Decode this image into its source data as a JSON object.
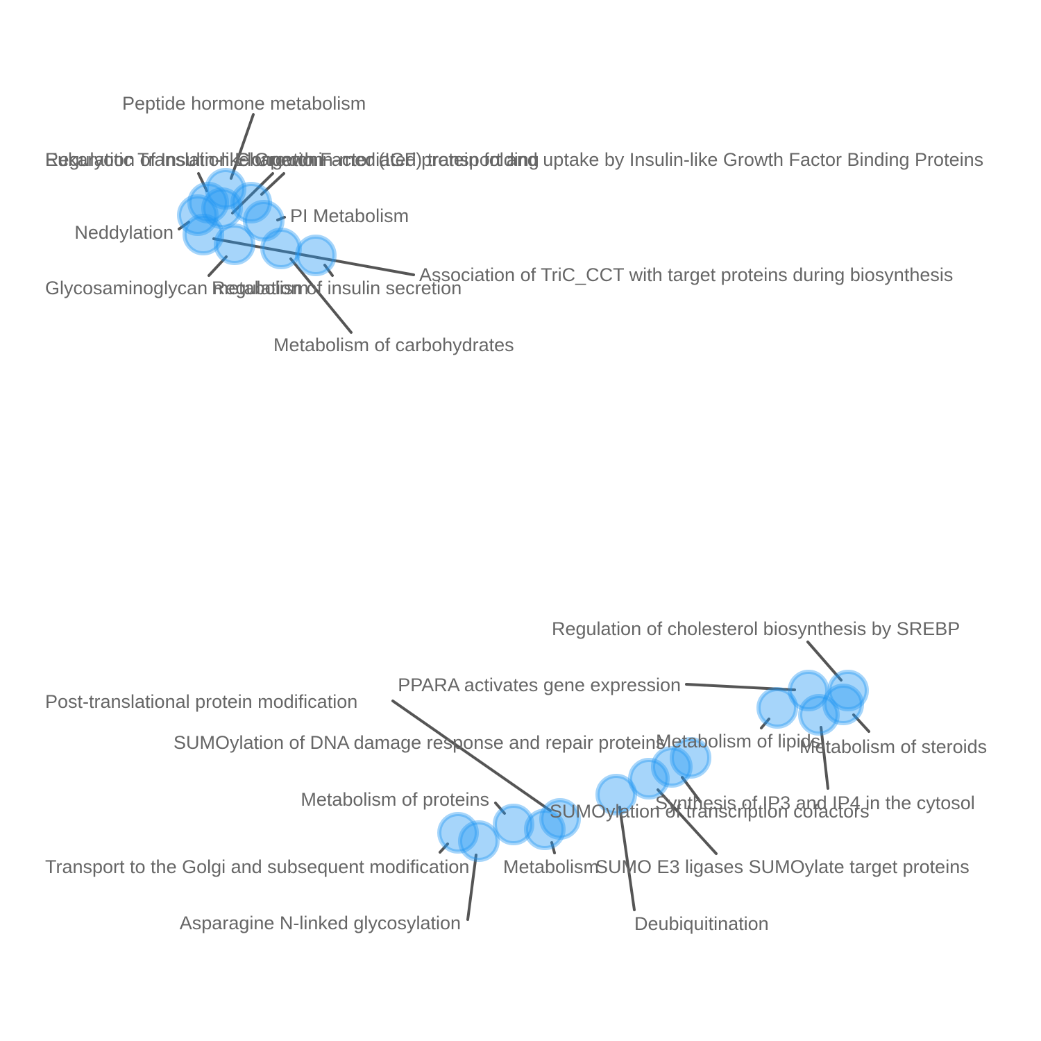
{
  "nodes": [
    {
      "id": "peptide",
      "label": "Peptide hormone metabolism",
      "color": "#2196F3"
    },
    {
      "id": "igfbp",
      "label": "Regulation of Insulin-like Growth Factor (IGF) transport and uptake by Insulin-like Growth Factor Binding Proteins",
      "color": "#2196F3"
    },
    {
      "id": "eukaryotic",
      "label": "Eukaryotic Translation Elongation",
      "color": "#2196F3"
    },
    {
      "id": "chaperonin",
      "label": "Chaperonin-mediated protein folding",
      "color": "#2196F3"
    },
    {
      "id": "pi",
      "label": "PI Metabolism",
      "color": "#2196F3"
    },
    {
      "id": "neddylation",
      "label": "Neddylation",
      "color": "#2196F3"
    },
    {
      "id": "tric",
      "label": "Association of TriC_CCT with target proteins during biosynthesis",
      "color": "#2196F3"
    },
    {
      "id": "gag",
      "label": "Glycosaminoglycan metabolism",
      "color": "#2196F3"
    },
    {
      "id": "insulin",
      "label": "Regulation of insulin secretion",
      "color": "#2196F3"
    },
    {
      "id": "carbs",
      "label": "Metabolism of carbohydrates",
      "color": "#2196F3"
    },
    {
      "id": "srebp",
      "label": "Regulation of cholesterol biosynthesis by SREBP",
      "color": "#2196F3"
    },
    {
      "id": "ppara",
      "label": "PPARA activates gene expression",
      "color": "#2196F3"
    },
    {
      "id": "ptm",
      "label": "Post-translational protein modification",
      "color": "#2196F3"
    },
    {
      "id": "lipids",
      "label": "Metabolism of lipids",
      "color": "#2196F3"
    },
    {
      "id": "sumo_dna",
      "label": "SUMOylation of DNA damage response and repair proteins",
      "color": "#2196F3"
    },
    {
      "id": "steroids",
      "label": "Metabolism of steroids",
      "color": "#2196F3"
    },
    {
      "id": "proteins",
      "label": "Metabolism of proteins",
      "color": "#2196F3"
    },
    {
      "id": "ip3",
      "label": "Synthesis of IP3 and IP4 in the cytosol",
      "color": "#2196F3"
    },
    {
      "id": "sumo_tc",
      "label": "SUMOylation of transcription cofactors",
      "color": "#2196F3"
    },
    {
      "id": "golgi",
      "label": "Transport to the Golgi and subsequent modification",
      "color": "#2196F3"
    },
    {
      "id": "metabolism",
      "label": "Metabolism",
      "color": "#2196F3"
    },
    {
      "id": "sumo_e3",
      "label": "SUMO E3 ligases SUMOylate target proteins",
      "color": "#2196F3"
    },
    {
      "id": "asparagine",
      "label": "Asparagine N-linked glycosylation",
      "color": "#2196F3"
    },
    {
      "id": "deubiq",
      "label": "Deubiquitination",
      "color": "#2196F3"
    }
  ]
}
